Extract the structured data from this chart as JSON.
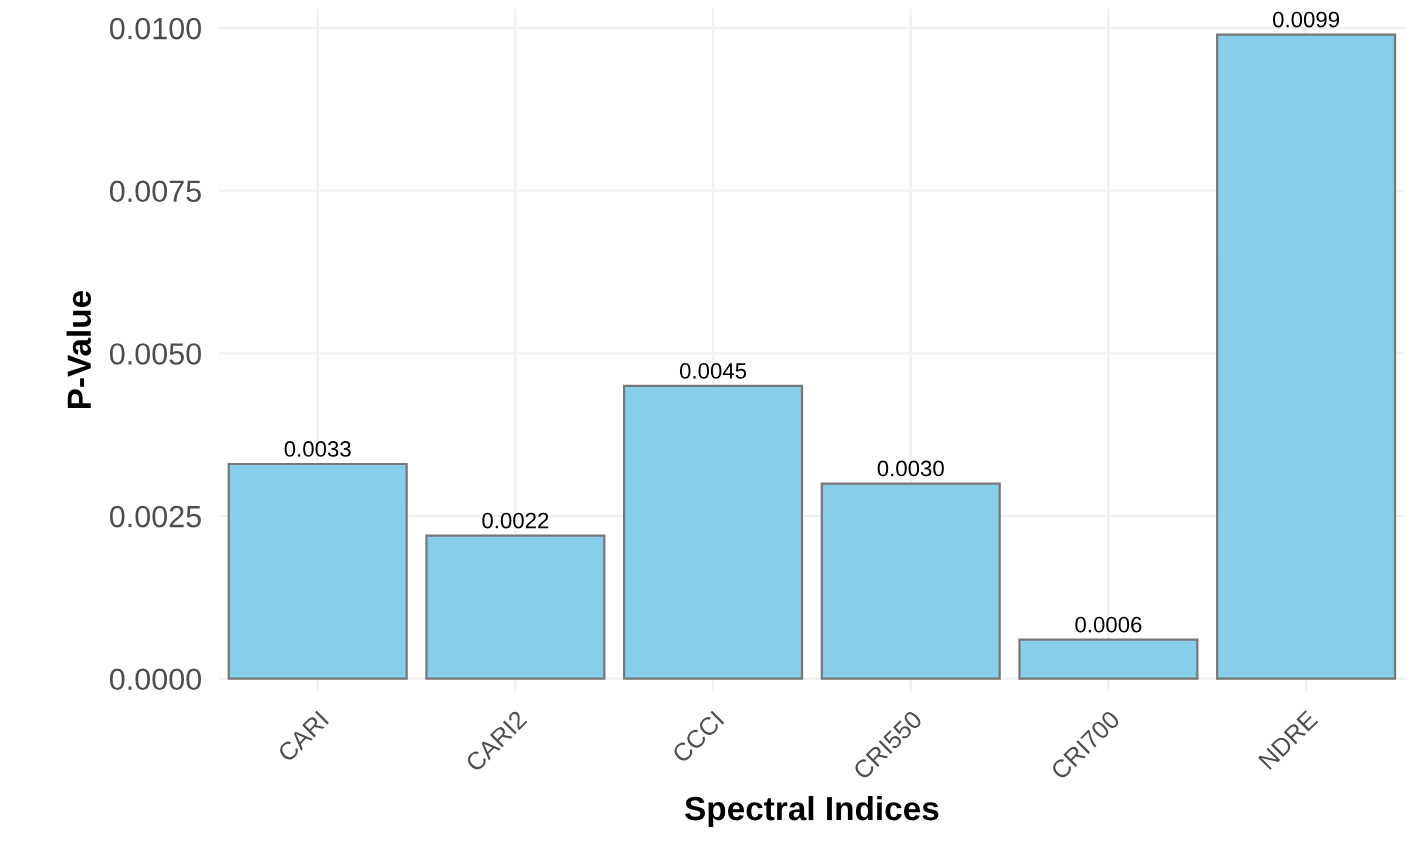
{
  "chart_data": {
    "type": "bar",
    "xlabel": "Spectral Indices",
    "ylabel": "P-Value",
    "categories": [
      "CARI",
      "CARI2",
      "CCCI",
      "CRI550",
      "CRI700",
      "NDRE"
    ],
    "values": [
      0.0033,
      0.0022,
      0.0045,
      0.003,
      0.0006,
      0.0099
    ],
    "value_labels": [
      "0.0033",
      "0.0022",
      "0.0045",
      "0.0030",
      "0.0006",
      "0.0099"
    ],
    "color": "#87ceeb",
    "ylim": [
      -0.0002,
      0.0103
    ],
    "yticks": [
      {
        "value": 0,
        "label": "0.0000"
      },
      {
        "value": 0.0025,
        "label": "0.0025"
      },
      {
        "value": 0.005,
        "label": "0.0050"
      },
      {
        "value": 0.0075,
        "label": "0.0075"
      },
      {
        "value": 0.01,
        "label": "0.0100"
      }
    ],
    "grid": true
  }
}
